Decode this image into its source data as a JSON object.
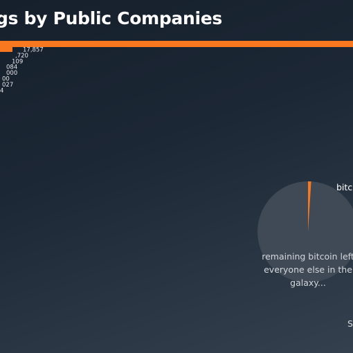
{
  "title": "gs by Public Companies",
  "colors": {
    "accent": "#f7781e",
    "pie_rest": "#3f4a56",
    "text": "#ffffff"
  },
  "chart_data": [
    {
      "type": "bar",
      "orientation": "horizontal",
      "title": "gs by Public Companies",
      "value_labels": [
        "17,857",
        ",720",
        "109",
        "084",
        "000",
        "00",
        "027",
        "4"
      ],
      "values": [
        17857,
        null,
        null,
        null,
        null,
        null,
        null,
        null
      ]
    },
    {
      "type": "pie",
      "slice_labels": [
        "bitc",
        "remaining bitcoin left for everyone else in the galaxy..."
      ],
      "values": [
        1,
        99
      ],
      "colors": [
        "#f7781e",
        "#3f4a56"
      ]
    }
  ],
  "pie": {
    "slice_label": "bitc",
    "caption_line1": "remaining bitcoin left",
    "caption_line2": "everyone else in the",
    "caption_line3": "galaxy..."
  },
  "corner_text": "S"
}
